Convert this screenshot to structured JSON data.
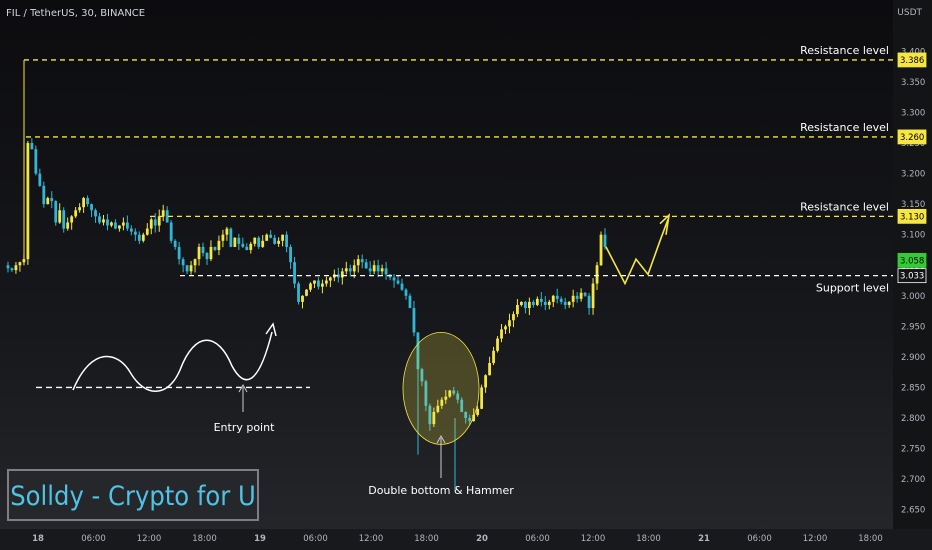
{
  "header": {
    "symbol_line": "FIL / TetherUS, 30, BINANCE",
    "unit": "USDT"
  },
  "brand_text": "Solldy - Crypto for U",
  "annotations": {
    "resistance_1": "Resistance level",
    "resistance_2": "Resistance level",
    "resistance_3": "Resistance level",
    "support": "Support level",
    "entry": "Entry point",
    "double_bottom": "Double bottom & Hammer"
  },
  "colors": {
    "bull": "#f5e642",
    "bear": "#2fb8d6",
    "resistance": "#f5e642",
    "support": "#ffffff",
    "current_price": "#33cc33",
    "text": "#ffffff",
    "axis_text": "#b2b5be"
  },
  "chart_data": {
    "type": "candlestick",
    "title": "FIL / TetherUS, 30, BINANCE",
    "y_unit": "USDT",
    "ylim": [
      2.62,
      3.435
    ],
    "y_ticks": [
      "3.400",
      "3.350",
      "3.300",
      "3.250",
      "3.200",
      "3.150",
      "3.100",
      "3.050",
      "3.000",
      "2.950",
      "2.900",
      "2.850",
      "2.800",
      "2.750",
      "2.700",
      "2.650"
    ],
    "x_ticks": [
      {
        "label": "18",
        "bold": true
      },
      {
        "label": "06:00"
      },
      {
        "label": "12:00"
      },
      {
        "label": "18:00"
      },
      {
        "label": "19",
        "bold": true
      },
      {
        "label": "06:00"
      },
      {
        "label": "12:00"
      },
      {
        "label": "18:00"
      },
      {
        "label": "20",
        "bold": true
      },
      {
        "label": "06:00"
      },
      {
        "label": "12:00"
      },
      {
        "label": "18:00"
      },
      {
        "label": "21",
        "bold": true
      },
      {
        "label": "06:00"
      },
      {
        "label": "12:00"
      },
      {
        "label": "18:00"
      }
    ],
    "levels": [
      {
        "kind": "resistance",
        "label": "Resistance level",
        "price": "3.386"
      },
      {
        "kind": "resistance",
        "label": "Resistance level",
        "price": "3.260"
      },
      {
        "kind": "resistance",
        "label": "Resistance level",
        "price": "3.130"
      },
      {
        "kind": "current",
        "price": "3.058"
      },
      {
        "kind": "support",
        "label": "Support level",
        "price": "3.033"
      }
    ],
    "close_path": [
      3.05,
      3.045,
      3.042,
      3.05,
      3.055,
      3.06,
      3.25,
      3.24,
      3.2,
      3.18,
      3.15,
      3.16,
      3.155,
      3.12,
      3.14,
      3.11,
      3.12,
      3.13,
      3.14,
      3.145,
      3.16,
      3.15,
      3.14,
      3.13,
      3.12,
      3.125,
      3.115,
      3.12,
      3.11,
      3.115,
      3.12,
      3.11,
      3.105,
      3.1,
      3.09,
      3.1,
      3.11,
      3.125,
      3.115,
      3.13,
      3.14,
      3.12,
      3.09,
      3.08,
      3.06,
      3.05,
      3.04,
      3.05,
      3.06,
      3.08,
      3.07,
      3.06,
      3.08,
      3.075,
      3.09,
      3.1,
      3.11,
      3.08,
      3.095,
      3.085,
      3.08,
      3.075,
      3.085,
      3.095,
      3.08,
      3.09,
      3.1,
      3.095,
      3.085,
      3.09,
      3.1,
      3.08,
      3.055,
      3.02,
      2.99,
      3.0,
      3.01,
      3.02,
      3.025,
      3.015,
      3.02,
      3.025,
      3.03,
      3.035,
      3.03,
      3.04,
      3.045,
      3.04,
      3.05,
      3.06,
      3.055,
      3.045,
      3.04,
      3.05,
      3.04,
      3.045,
      3.035,
      3.03,
      3.025,
      3.02,
      3.01,
      3.0,
      2.98,
      2.94,
      2.88,
      2.86,
      2.82,
      2.79,
      2.81,
      2.82,
      2.83,
      2.835,
      2.845,
      2.84,
      2.83,
      2.81,
      2.8,
      2.795,
      2.805,
      2.815,
      2.85,
      2.87,
      2.89,
      2.91,
      2.93,
      2.945,
      2.95,
      2.96,
      2.97,
      2.985,
      2.99,
      2.98,
      2.99,
      2.985,
      2.995,
      2.99,
      2.985,
      2.99,
      3.0,
      2.995,
      2.99,
      2.985,
      2.99,
      3.0,
      2.995,
      3.005,
      3.0,
      2.98,
      3.02,
      3.05,
      3.1,
      3.08
    ],
    "projection_path": [
      3.08,
      3.02,
      3.06,
      3.035,
      3.09,
      3.125
    ],
    "annotation_wave": {
      "entry_price": "2.850",
      "label": "Entry point"
    },
    "highlight": {
      "label": "Double bottom & Hammer",
      "price_low": 2.78,
      "price_high": 2.93
    }
  }
}
